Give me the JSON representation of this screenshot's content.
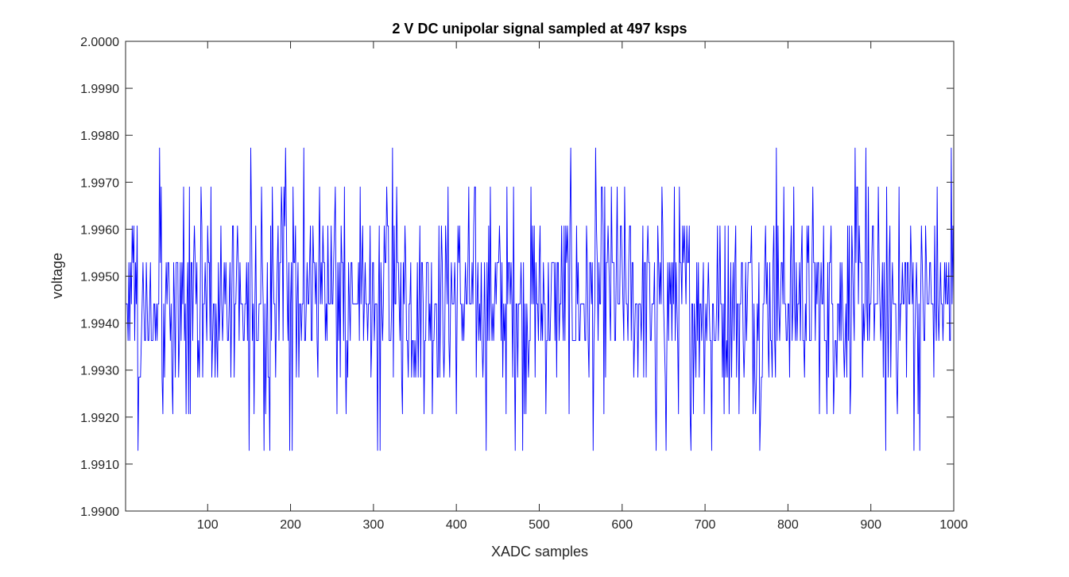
{
  "chart_data": {
    "type": "line",
    "title": "2 V DC unipolar signal sampled at 497 ksps",
    "xlabel": "XADC samples",
    "ylabel": "voltage",
    "xlim": [
      1,
      1000
    ],
    "ylim": [
      1.99,
      2.0
    ],
    "xticks": [
      100,
      200,
      300,
      400,
      500,
      600,
      700,
      800,
      900,
      1000
    ],
    "xtick_labels": [
      "100",
      "200",
      "300",
      "400",
      "500",
      "600",
      "700",
      "800",
      "900",
      "1000"
    ],
    "yticks": [
      1.99,
      1.991,
      1.992,
      1.993,
      1.994,
      1.995,
      1.996,
      1.997,
      1.998,
      1.999,
      2.0
    ],
    "ytick_labels": [
      "1.9900",
      "1.9910",
      "1.9920",
      "1.9930",
      "1.9940",
      "1.9950",
      "1.9960",
      "1.9970",
      "1.9980",
      "1.9990",
      "2.0000"
    ],
    "grid": false,
    "legend": false,
    "series": [
      {
        "color": "#0000ff",
        "levels": [
          1.99129,
          1.99207,
          1.99285,
          1.99363,
          1.99441,
          1.99529,
          1.99607,
          1.9969,
          1.99773
        ],
        "level_weights": [
          1,
          3,
          9,
          22,
          28,
          22,
          9,
          5,
          1
        ],
        "notable_values": [
          {
            "x": 150,
            "y": 1.99129
          },
          {
            "x": 175,
            "y": 1.99129
          },
          {
            "x": 202,
            "y": 1.99129
          },
          {
            "x": 216,
            "y": 1.99773
          },
          {
            "x": 308,
            "y": 1.99129
          },
          {
            "x": 641,
            "y": 1.99129
          },
          {
            "x": 653,
            "y": 1.99129
          },
          {
            "x": 708,
            "y": 1.99129
          },
          {
            "x": 786,
            "y": 1.99773
          },
          {
            "x": 894,
            "y": 1.99773
          },
          {
            "x": 918,
            "y": 1.99129
          },
          {
            "x": 952,
            "y": 1.99129
          },
          {
            "x": 997,
            "y": 1.99773
          }
        ],
        "n_points": 1000
      }
    ]
  }
}
